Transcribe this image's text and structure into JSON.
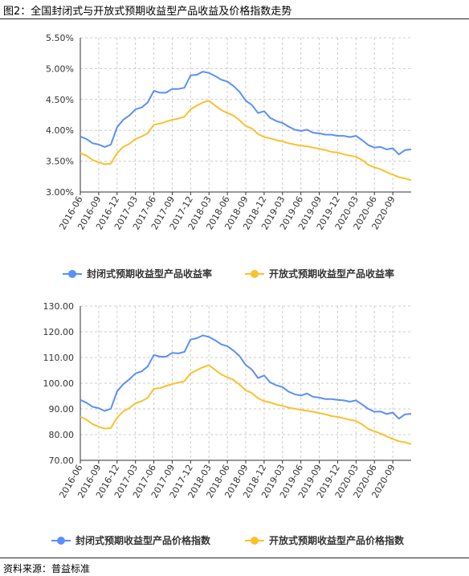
{
  "caption": "图2：全国封闭式与开放式预期收益型产品收益及价格指数走势",
  "source": "资料来源：普益标准",
  "colors": {
    "closed": "#5b8ff9",
    "open": "#fac12e",
    "grid": "#cccccc",
    "axis": "#333333"
  },
  "chart_data": [
    {
      "type": "line",
      "title": "",
      "xlabel": "",
      "ylabel": "",
      "ylim": [
        3.0,
        5.5
      ],
      "y_ticks": [
        "5.50%",
        "5.00%",
        "4.50%",
        "4.00%",
        "3.50%",
        "3.00%"
      ],
      "y_tick_values": [
        5.5,
        5.0,
        4.5,
        4.0,
        3.5,
        3.0
      ],
      "x_tick_labels": [
        "2016-06",
        "2016-09",
        "2016-12",
        "2017-03",
        "2017-06",
        "2017-09",
        "2017-12",
        "2018-03",
        "2018-06",
        "2018-09",
        "2018-12",
        "2019-03",
        "2019-06",
        "2019-09",
        "2019-12",
        "2020-03",
        "2020-06",
        "2020-09"
      ],
      "legend_position": "bottom",
      "grid": true,
      "series": [
        {
          "name": "封闭式预期收益型产品收益率",
          "values": [
            3.9,
            3.86,
            3.79,
            3.77,
            3.73,
            3.77,
            4.05,
            4.17,
            4.24,
            4.34,
            4.37,
            4.45,
            4.64,
            4.61,
            4.61,
            4.67,
            4.67,
            4.69,
            4.89,
            4.9,
            4.95,
            4.93,
            4.88,
            4.82,
            4.79,
            4.72,
            4.62,
            4.48,
            4.41,
            4.28,
            4.31,
            4.2,
            4.15,
            4.12,
            4.06,
            4.01,
            3.99,
            4.01,
            3.96,
            3.95,
            3.93,
            3.93,
            3.91,
            3.91,
            3.89,
            3.91,
            3.84,
            3.76,
            3.72,
            3.73,
            3.69,
            3.71,
            3.61,
            3.68,
            3.69
          ]
        },
        {
          "name": "开放式预期收益型产品收益率",
          "values": [
            3.63,
            3.59,
            3.52,
            3.48,
            3.45,
            3.46,
            3.63,
            3.73,
            3.78,
            3.86,
            3.9,
            3.95,
            4.09,
            4.11,
            4.14,
            4.17,
            4.19,
            4.22,
            4.34,
            4.4,
            4.45,
            4.48,
            4.4,
            4.33,
            4.28,
            4.24,
            4.16,
            4.07,
            4.03,
            3.94,
            3.89,
            3.87,
            3.84,
            3.82,
            3.79,
            3.77,
            3.75,
            3.74,
            3.72,
            3.7,
            3.68,
            3.65,
            3.64,
            3.61,
            3.59,
            3.57,
            3.52,
            3.44,
            3.4,
            3.37,
            3.32,
            3.28,
            3.24,
            3.22,
            3.19
          ]
        }
      ]
    },
    {
      "type": "line",
      "title": "",
      "xlabel": "",
      "ylabel": "",
      "ylim": [
        70,
        130
      ],
      "y_ticks": [
        "130.00",
        "120.00",
        "110.00",
        "100.00",
        "90.00",
        "80.00",
        "70.00"
      ],
      "y_tick_values": [
        130,
        120,
        110,
        100,
        90,
        80,
        70
      ],
      "x_tick_labels": [
        "2016-06",
        "2016-09",
        "2016-12",
        "2017-03",
        "2017-06",
        "2017-09",
        "2017-12",
        "2018-03",
        "2018-06",
        "2018-09",
        "2018-12",
        "2019-03",
        "2019-06",
        "2019-09",
        "2019-12",
        "2020-03",
        "2020-06",
        "2020-09"
      ],
      "legend_position": "bottom",
      "grid": true,
      "series": [
        {
          "name": "封闭式预期收益型产品价格指数",
          "values": [
            93.5,
            92.4,
            90.8,
            90.3,
            89.2,
            90.1,
            96.8,
            99.6,
            101.5,
            103.8,
            104.6,
            106.5,
            111.0,
            110.3,
            110.3,
            111.8,
            111.6,
            112.2,
            117.0,
            117.5,
            118.6,
            118.0,
            116.7,
            115.1,
            114.4,
            112.7,
            110.5,
            107.1,
            105.3,
            102.0,
            103.0,
            100.3,
            99.2,
            98.5,
            96.7,
            95.7,
            95.2,
            96.0,
            94.7,
            94.4,
            93.8,
            93.8,
            93.5,
            93.3,
            92.8,
            93.3,
            91.7,
            90.0,
            88.9,
            89.0,
            88.0,
            88.6,
            86.2,
            87.9,
            88.1
          ]
        },
        {
          "name": "开放式预期收益型产品价格指数",
          "values": [
            87.0,
            85.8,
            84.1,
            83.1,
            82.3,
            82.6,
            86.6,
            89.0,
            90.3,
            92.2,
            93.0,
            94.3,
            97.8,
            98.1,
            98.9,
            99.7,
            100.2,
            100.8,
            103.8,
            105.1,
            106.2,
            107.0,
            105.2,
            103.4,
            102.3,
            101.3,
            99.4,
            97.2,
            96.2,
            94.2,
            93.0,
            92.5,
            91.7,
            91.2,
            90.5,
            90.1,
            89.6,
            89.3,
            88.9,
            88.4,
            87.9,
            87.2,
            86.9,
            86.3,
            85.8,
            85.3,
            84.0,
            82.2,
            81.3,
            80.4,
            79.3,
            78.3,
            77.4,
            77.0,
            76.3
          ]
        }
      ]
    }
  ]
}
